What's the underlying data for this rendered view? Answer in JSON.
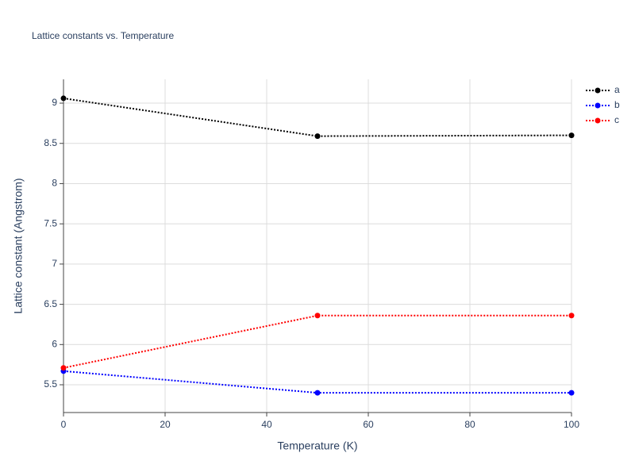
{
  "chart_data": {
    "type": "line",
    "title": "Lattice constants vs. Temperature",
    "x_label": "Temperature (K)",
    "y_label": "Lattice constant (Angstrom)",
    "x": [
      0,
      50,
      100
    ],
    "series": [
      {
        "name": "a",
        "color": "#000000",
        "values": [
          9.06,
          8.59,
          8.6
        ]
      },
      {
        "name": "b",
        "color": "#0000ff",
        "values": [
          5.67,
          5.4,
          5.4
        ]
      },
      {
        "name": "c",
        "color": "#ff0000",
        "values": [
          5.71,
          6.36,
          6.36
        ]
      }
    ],
    "xlim": [
      0,
      100
    ],
    "xticks": [
      0,
      20,
      40,
      60,
      80,
      100
    ],
    "ylim": [
      5.155,
      9.296
    ],
    "yticks": [
      5.5,
      6,
      6.5,
      7,
      7.5,
      8,
      8.5,
      9
    ],
    "grid": true,
    "legend": "top-right"
  }
}
